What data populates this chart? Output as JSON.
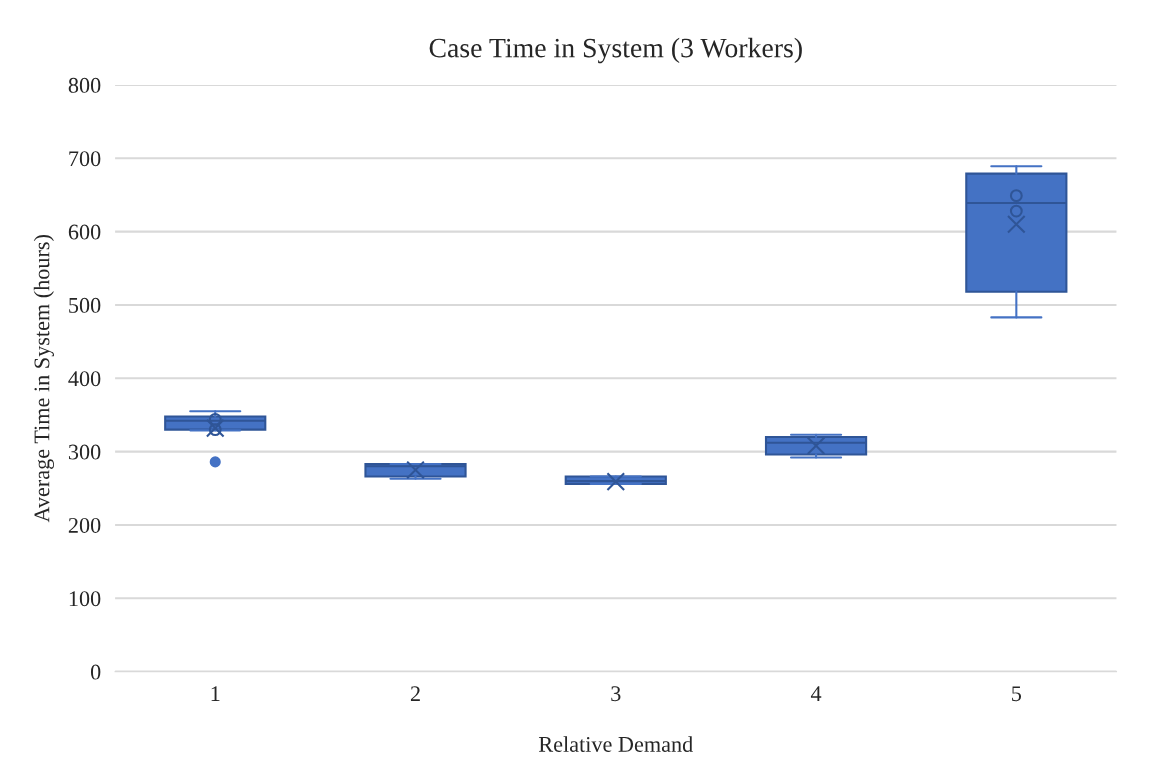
{
  "chart_data": {
    "type": "box",
    "title": "Case Time in System (3 Workers)",
    "xlabel": "Relative Demand",
    "ylabel": "Average Time in System (hours)",
    "categories": [
      "1",
      "2",
      "3",
      "4",
      "5"
    ],
    "color": "#4472c4",
    "boxes": [
      {
        "low": 329,
        "q1": 330,
        "median": 342,
        "q3": 348,
        "high": 355,
        "mean": 332,
        "outliers": [
          286
        ]
      },
      {
        "low": 263,
        "q1": 266,
        "median": 280,
        "q3": 283,
        "high": 283,
        "mean": 275
      },
      {
        "low": 256,
        "q1": 256,
        "median": 260,
        "q3": 266,
        "high": 266,
        "mean": 259
      },
      {
        "low": 292,
        "q1": 296,
        "median": 312,
        "q3": 320,
        "high": 323,
        "mean": 308
      },
      {
        "low": 483,
        "q1": 518,
        "median": 639,
        "q3": 679,
        "high": 689,
        "mean": 610
      }
    ],
    "series": [
      {
        "type": "scatter",
        "x": [
          "1",
          "1",
          "5",
          "5"
        ],
        "values": [
          344,
          330,
          649,
          628
        ],
        "color": "#2f5597",
        "marker": "circle"
      }
    ],
    "ylim": [
      0,
      800
    ],
    "yticks": [
      0,
      100,
      200,
      300,
      400,
      500,
      600,
      700,
      800
    ],
    "grid": "y"
  }
}
